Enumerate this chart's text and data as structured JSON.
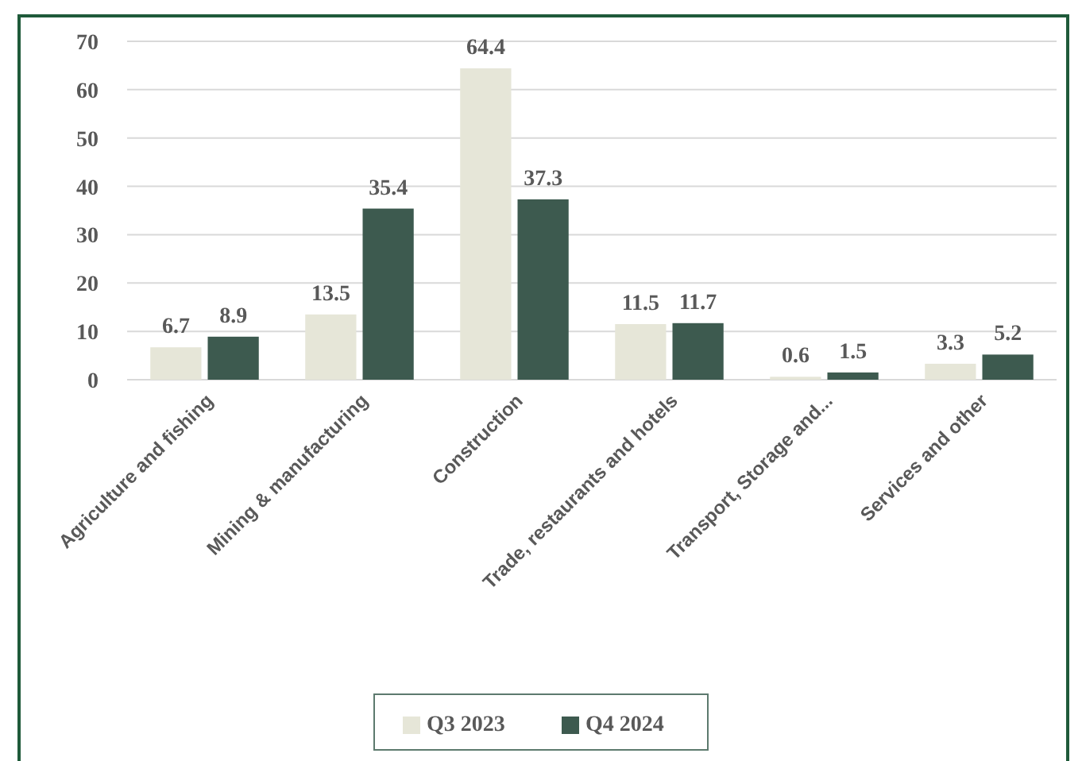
{
  "chart_data": {
    "type": "bar",
    "categories": [
      "Agriculture and fishing",
      "Mining & manufacturing",
      "Construction",
      "Trade, restaurants and hotels",
      "Transport, Storage and...",
      "Services and other"
    ],
    "series": [
      {
        "name": "Q3 2023",
        "color": "#e6e6d8",
        "values": [
          6.7,
          13.5,
          64.4,
          11.5,
          0.6,
          3.3
        ]
      },
      {
        "name": "Q4 2024",
        "color": "#3d5a4f",
        "values": [
          8.9,
          35.4,
          37.3,
          11.7,
          1.5,
          5.2
        ]
      }
    ],
    "ylim": [
      0,
      70
    ],
    "yticks": [
      0,
      10,
      20,
      30,
      40,
      50,
      60,
      70
    ],
    "grid": "y",
    "legend": "bottom",
    "data_labels": true
  }
}
